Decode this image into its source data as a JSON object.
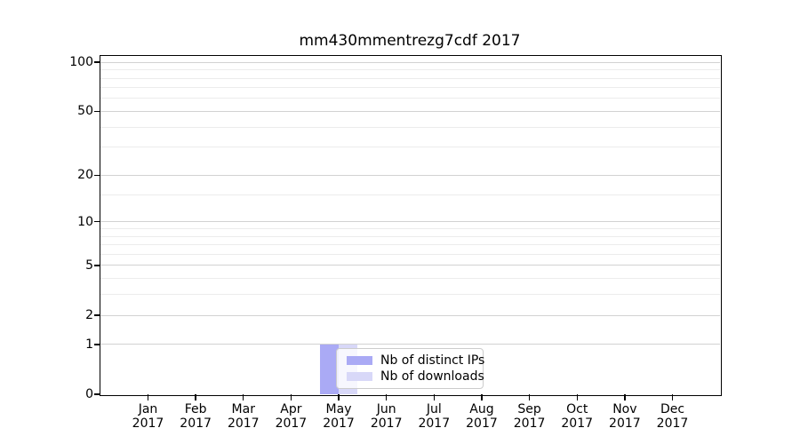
{
  "chart_data": {
    "type": "bar",
    "title": "mm430mmentrezg7cdf 2017",
    "categories": [
      "Jan 2017",
      "Feb 2017",
      "Mar 2017",
      "Apr 2017",
      "May 2017",
      "Jun 2017",
      "Jul 2017",
      "Aug 2017",
      "Sep 2017",
      "Oct 2017",
      "Nov 2017",
      "Dec 2017"
    ],
    "series": [
      {
        "name": "Nb of distinct IPs",
        "color": "#aaaaf5",
        "values": [
          0,
          0,
          0,
          0,
          1,
          0,
          0,
          0,
          0,
          0,
          0,
          0
        ]
      },
      {
        "name": "Nb of downloads",
        "color": "#d8d8f8",
        "values": [
          0,
          0,
          0,
          0,
          1,
          0,
          0,
          0,
          0,
          0,
          0,
          0
        ]
      }
    ],
    "xlabel": "",
    "ylabel": "",
    "y_scale": "log1p",
    "ylim": [
      0,
      110
    ],
    "y_ticks": [
      0,
      1,
      2,
      5,
      10,
      20,
      50,
      100
    ],
    "y_minor_gridlines": [
      3,
      4,
      6,
      7,
      8,
      9,
      15,
      30,
      40,
      60,
      70,
      80,
      90
    ],
    "grid": "horizontal",
    "legend_position": "lower center-left, inside plot"
  },
  "colors": {
    "major_grid": "#d2d2d2",
    "minor_grid": "#ececec",
    "axis": "#000000",
    "background": "#ffffff"
  }
}
